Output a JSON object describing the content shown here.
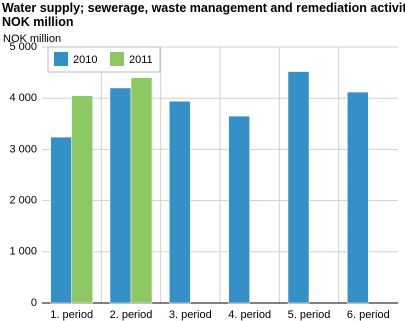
{
  "chart_data": {
    "type": "bar",
    "title": "Water supply; sewerage, waste management and remediation activities.",
    "subtitle": "NOK million",
    "y_label": "NOK million",
    "categories": [
      "1. period",
      "2. period",
      "3. period",
      "4. period",
      "5. period",
      "6. period"
    ],
    "series": [
      {
        "name": "2010",
        "color": "#3590c8",
        "values": [
          3240,
          4200,
          3940,
          3650,
          4520,
          4120
        ]
      },
      {
        "name": "2011",
        "color": "#8cc963",
        "values": [
          4050,
          4400,
          null,
          null,
          null,
          null
        ]
      }
    ],
    "ylim": [
      0,
      5000
    ],
    "yticks": [
      0,
      {
        "value": 1000,
        "label": "1 000"
      },
      {
        "value": 2000,
        "label": "2 000"
      },
      {
        "value": 3000,
        "label": "3 000"
      },
      {
        "value": 4000,
        "label": "4 000"
      },
      {
        "value": 5000,
        "label": "5 000"
      }
    ],
    "grid": true,
    "legend": "top-left"
  }
}
